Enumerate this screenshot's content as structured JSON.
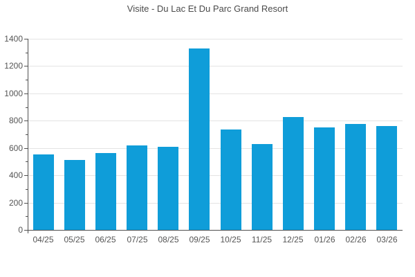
{
  "title": "Visite - Du Lac Et Du Parc Grand Resort",
  "colors": {
    "bar": "#0f9dd9",
    "grid": "#e3e3e3",
    "axis": "#4f4f4f",
    "tick_label": "#545454",
    "title_text": "#4a4a4a",
    "background": "#ffffff"
  },
  "chart_data": {
    "type": "bar",
    "title": "Visite - Du Lac Et Du Parc Grand Resort",
    "categories": [
      "04/25",
      "05/25",
      "06/25",
      "07/25",
      "08/25",
      "09/25",
      "10/25",
      "11/25",
      "12/25",
      "01/26",
      "02/26",
      "03/26"
    ],
    "values": [
      553,
      512,
      563,
      620,
      608,
      1331,
      734,
      627,
      825,
      751,
      778,
      763
    ],
    "series_name": "Visite",
    "xlabel": "",
    "ylabel": "",
    "ylim": [
      0,
      1400
    ],
    "ytick_step": 200,
    "ytick_minor_step": 100,
    "ytick_labels": [
      "0",
      "200",
      "400",
      "600",
      "800",
      "1000",
      "1200",
      "1400"
    ],
    "grid": true,
    "legend": false
  }
}
